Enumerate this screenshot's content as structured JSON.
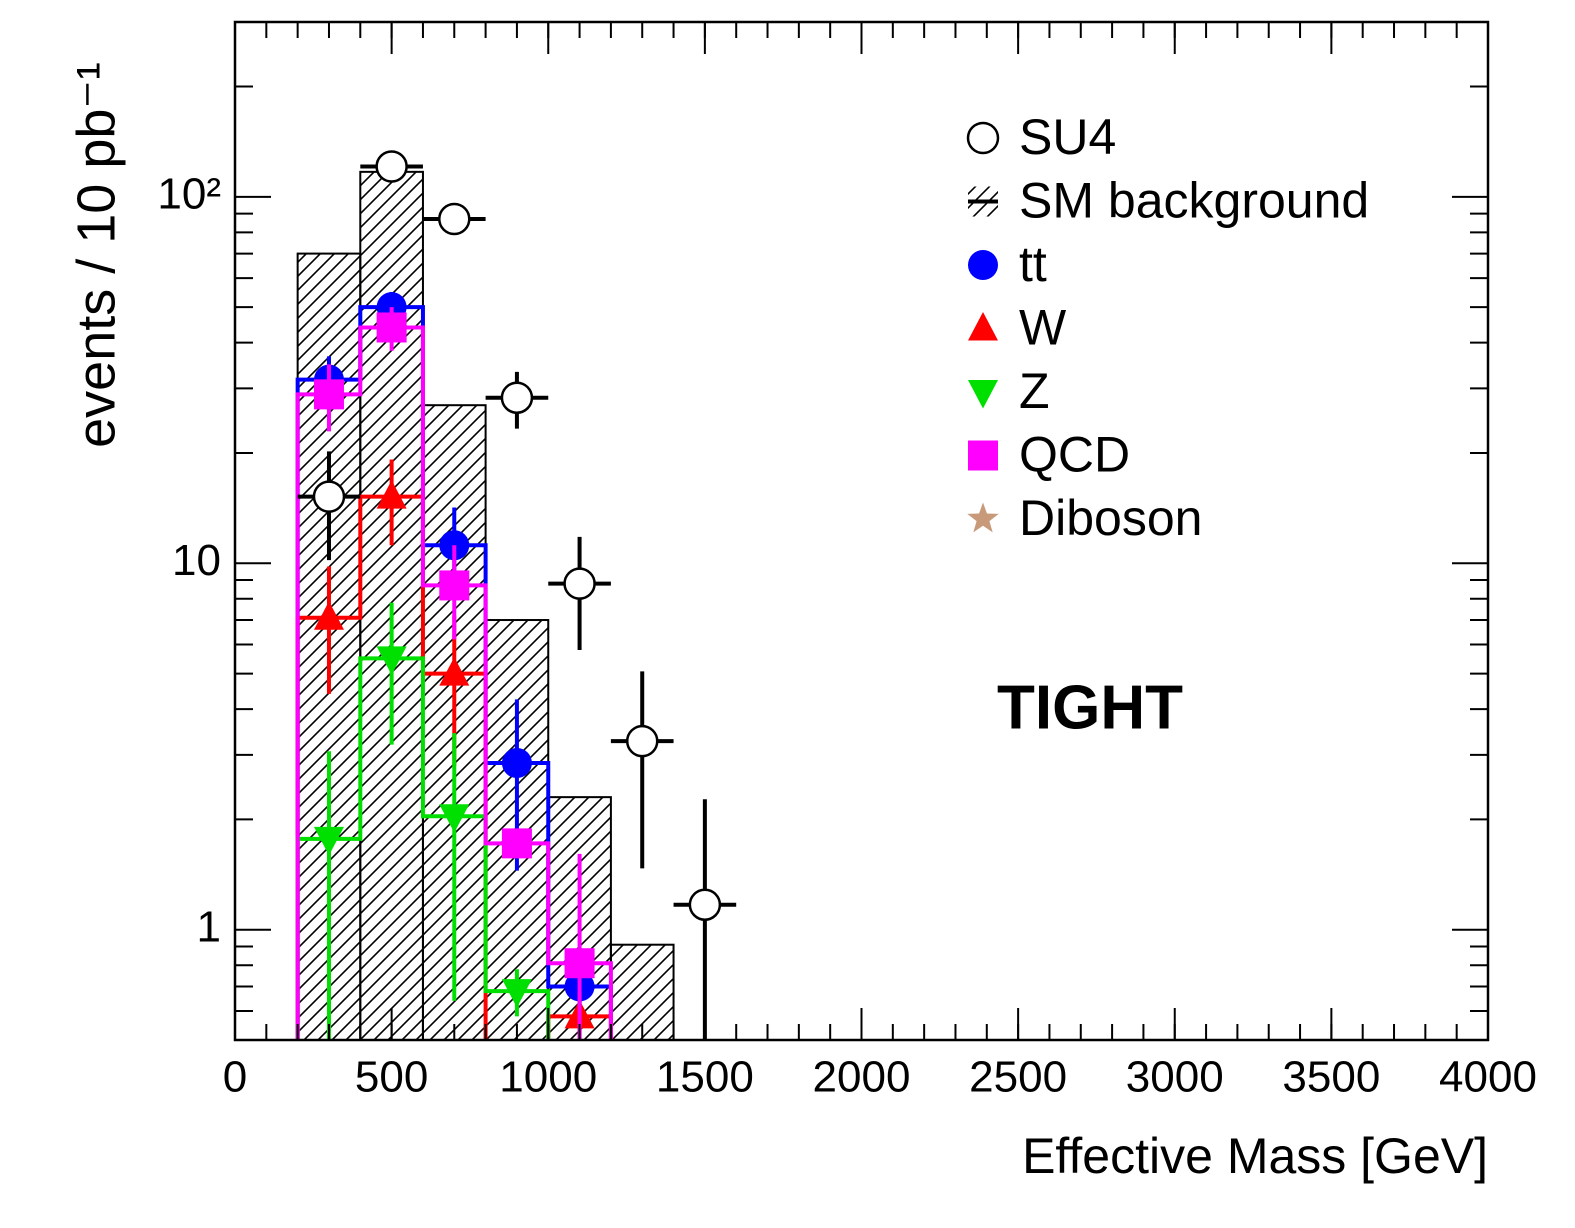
{
  "chart_data": {
    "type": "histogram",
    "x_label": "Effective Mass [GeV]",
    "y_label": "events / 10 pb⁻¹",
    "annotation": "TIGHT",
    "log_y": true,
    "legend": "upper right",
    "xlim": [
      0,
      4000
    ],
    "xticks": [
      0,
      500,
      1000,
      1500,
      2000,
      2500,
      3000,
      3500,
      4000
    ],
    "ylim": [
      0.5,
      300
    ],
    "yticks": [
      1,
      10,
      {
        "value": 100,
        "label": "10²"
      }
    ],
    "series": [
      {
        "name": "SU4",
        "style": "points",
        "marker": "circle-open",
        "color": "#000000",
        "x": [
          300,
          500,
          700,
          900,
          1100,
          1300,
          1500
        ],
        "values": [
          15.2,
          121,
          87,
          28.3,
          8.8,
          3.27,
          1.17
        ],
        "errors": [
          5,
          11,
          8,
          5,
          3,
          1.8,
          1.1
        ]
      },
      {
        "name": "SM background",
        "style": "hatched",
        "marker": "hatch",
        "color": "#000000",
        "bins": [
          200,
          400,
          600,
          800,
          1000,
          1200,
          1400
        ],
        "values": [
          70,
          117,
          27,
          7,
          2.3,
          0.91
        ]
      },
      {
        "name": "tt",
        "style": "step",
        "marker": "circle",
        "color": "#0000ff",
        "x": [
          300,
          500,
          700,
          900,
          1100
        ],
        "values": [
          31.7,
          50,
          11.2,
          2.85,
          0.7
        ],
        "errors": [
          5,
          5,
          3,
          1.4,
          0.1
        ]
      },
      {
        "name": "W",
        "style": "step",
        "marker": "triangle-up",
        "color": "#ff0000",
        "x": [
          300,
          500,
          700,
          1100
        ],
        "values": [
          7.1,
          15.2,
          5.0,
          0.58
        ],
        "errors": [
          2.7,
          4,
          2.2,
          0.1
        ]
      },
      {
        "name": "Z",
        "style": "step",
        "marker": "triangle-down",
        "color": "#00e000",
        "x": [
          300,
          500,
          700,
          900
        ],
        "values": [
          1.77,
          5.5,
          2.04,
          0.68
        ],
        "errors": [
          1.3,
          2.3,
          1.4,
          0.1
        ]
      },
      {
        "name": "QCD",
        "style": "step",
        "marker": "square",
        "color": "#ff00ff",
        "x": [
          300,
          500,
          700,
          900,
          1100
        ],
        "values": [
          28.9,
          44,
          8.7,
          1.72,
          0.81
        ],
        "errors": [
          6,
          6,
          2.5,
          0.1,
          0.8
        ]
      },
      {
        "name": "Diboson",
        "style": "step",
        "marker": "star",
        "color": "#c89a7a",
        "x": [],
        "values": [],
        "errors": []
      }
    ]
  }
}
